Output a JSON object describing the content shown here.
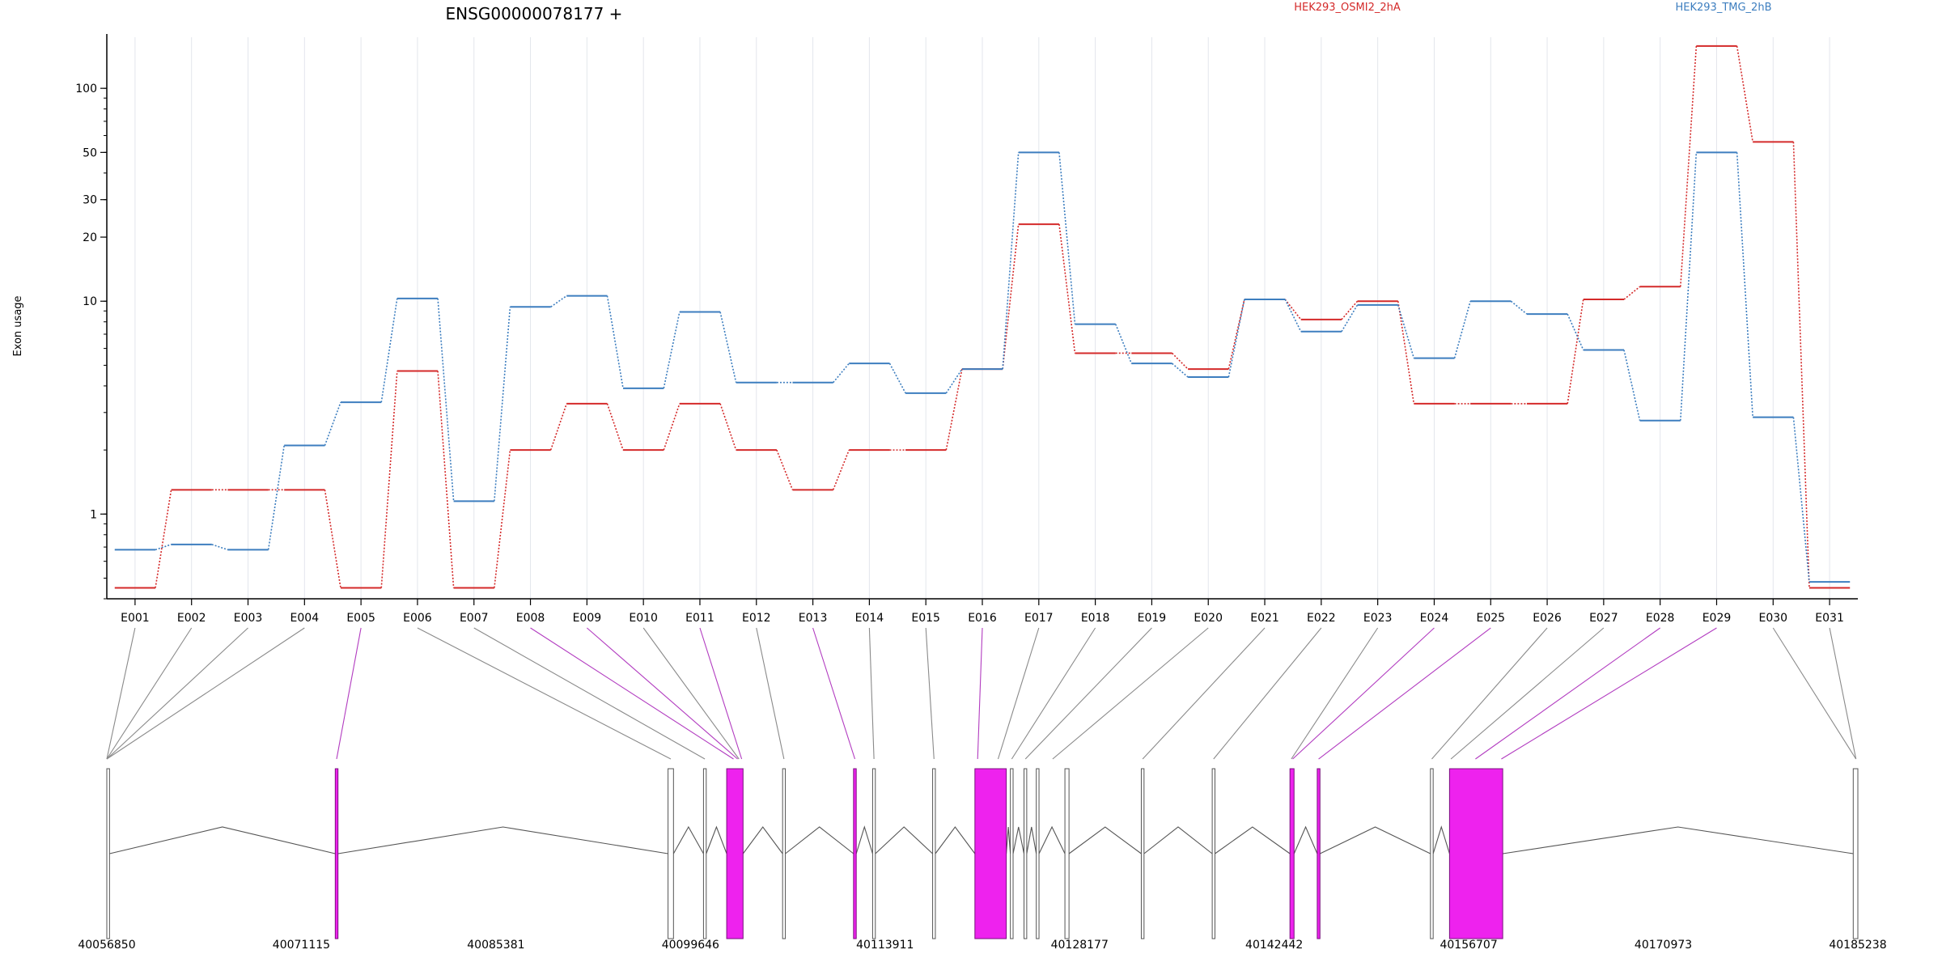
{
  "chart_data": {
    "type": "line",
    "title": "ENSG00000078177 +",
    "ylabel": "Exon usage",
    "y_scale": "log",
    "ylim": [
      0.4,
      180
    ],
    "y_ticks": [
      1,
      10,
      20,
      30,
      50,
      100
    ],
    "y_tick_labels": [
      "1",
      "10",
      "20",
      "30",
      "50",
      "100"
    ],
    "grid": "vertical",
    "legend_placement": "top",
    "categories": [
      "E001",
      "E002",
      "E003",
      "E004",
      "E005",
      "E006",
      "E007",
      "E008",
      "E009",
      "E010",
      "E011",
      "E012",
      "E013",
      "E014",
      "E015",
      "E016",
      "E017",
      "E018",
      "E019",
      "E020",
      "E021",
      "E022",
      "E023",
      "E024",
      "E025",
      "E026",
      "E027",
      "E028",
      "E029",
      "E030",
      "E031"
    ],
    "series": [
      {
        "name": "HEK293_OSMI2_2hA",
        "color": "#d42a2a",
        "values": [
          0.45,
          1.3,
          1.3,
          1.3,
          0.45,
          4.7,
          0.45,
          2.0,
          3.3,
          2.0,
          3.3,
          2.0,
          1.3,
          2.0,
          2.0,
          4.8,
          23.0,
          5.7,
          5.7,
          4.8,
          10.2,
          8.2,
          10.0,
          3.3,
          3.3,
          3.3,
          10.2,
          11.7,
          158.0,
          56.0,
          0.45
        ]
      },
      {
        "name": "HEK293_TMG_2hB",
        "color": "#3d7ebf",
        "values": [
          0.68,
          0.72,
          0.68,
          2.1,
          3.35,
          10.3,
          1.15,
          9.4,
          10.6,
          3.9,
          8.9,
          4.15,
          4.15,
          5.1,
          3.7,
          4.8,
          50.0,
          7.8,
          5.1,
          4.4,
          10.2,
          7.2,
          9.6,
          5.4,
          10.0,
          8.7,
          5.9,
          2.75,
          50.0,
          2.85,
          0.48
        ]
      }
    ],
    "genome": {
      "axis_labels": [
        "40056850",
        "40071115",
        "40085381",
        "40099646",
        "40113911",
        "40128177",
        "40142442",
        "40156707",
        "40170973",
        "40185238"
      ],
      "axis_positions": [
        40056850,
        40071115,
        40085381,
        40099646,
        40113911,
        40128177,
        40142442,
        40156707,
        40170973,
        40185238
      ],
      "range": [
        40056850,
        40185238
      ],
      "highlight_color": "#ee22ee",
      "exons": [
        {
          "start": 40056850,
          "end": 40057050,
          "highlight": false
        },
        {
          "start": 40073600,
          "end": 40073800,
          "highlight": true
        },
        {
          "start": 40098000,
          "end": 40098400,
          "highlight": false
        },
        {
          "start": 40100600,
          "end": 40100800,
          "highlight": false
        },
        {
          "start": 40102300,
          "end": 40103500,
          "highlight": true
        },
        {
          "start": 40106400,
          "end": 40106600,
          "highlight": false
        },
        {
          "start": 40111600,
          "end": 40111800,
          "highlight": true
        },
        {
          "start": 40113000,
          "end": 40113200,
          "highlight": false
        },
        {
          "start": 40117400,
          "end": 40117600,
          "highlight": false
        },
        {
          "start": 40120500,
          "end": 40122800,
          "highlight": true
        },
        {
          "start": 40123100,
          "end": 40123300,
          "highlight": false
        },
        {
          "start": 40124100,
          "end": 40124300,
          "highlight": false
        },
        {
          "start": 40125000,
          "end": 40125200,
          "highlight": false
        },
        {
          "start": 40127100,
          "end": 40127400,
          "highlight": false
        },
        {
          "start": 40132700,
          "end": 40132900,
          "highlight": false
        },
        {
          "start": 40137900,
          "end": 40138100,
          "highlight": false
        },
        {
          "start": 40143600,
          "end": 40143900,
          "highlight": true
        },
        {
          "start": 40145600,
          "end": 40145800,
          "highlight": true
        },
        {
          "start": 40153900,
          "end": 40154100,
          "highlight": false
        },
        {
          "start": 40155300,
          "end": 40159200,
          "highlight": true
        },
        {
          "start": 40184900,
          "end": 40185238,
          "highlight": false
        }
      ],
      "bin_map": [
        {
          "pos": 40056850,
          "highlight": false
        },
        {
          "pos": 40056850,
          "highlight": false
        },
        {
          "pos": 40056850,
          "highlight": false
        },
        {
          "pos": 40056850,
          "highlight": false
        },
        {
          "pos": 40073700,
          "highlight": true
        },
        {
          "pos": 40098200,
          "highlight": false
        },
        {
          "pos": 40100700,
          "highlight": false
        },
        {
          "pos": 40102800,
          "highlight": true
        },
        {
          "pos": 40103100,
          "highlight": true
        },
        {
          "pos": 40103200,
          "highlight": false
        },
        {
          "pos": 40103400,
          "highlight": true
        },
        {
          "pos": 40106500,
          "highlight": false
        },
        {
          "pos": 40111700,
          "highlight": true
        },
        {
          "pos": 40113100,
          "highlight": false
        },
        {
          "pos": 40117500,
          "highlight": false
        },
        {
          "pos": 40120700,
          "highlight": true
        },
        {
          "pos": 40122200,
          "highlight": false
        },
        {
          "pos": 40123200,
          "highlight": false
        },
        {
          "pos": 40124200,
          "highlight": false
        },
        {
          "pos": 40126200,
          "highlight": false
        },
        {
          "pos": 40132800,
          "highlight": false
        },
        {
          "pos": 40138000,
          "highlight": false
        },
        {
          "pos": 40143700,
          "highlight": false
        },
        {
          "pos": 40143800,
          "highlight": true
        },
        {
          "pos": 40145700,
          "highlight": true
        },
        {
          "pos": 40154000,
          "highlight": false
        },
        {
          "pos": 40155400,
          "highlight": false
        },
        {
          "pos": 40157200,
          "highlight": true
        },
        {
          "pos": 40159100,
          "highlight": true
        },
        {
          "pos": 40185100,
          "highlight": false
        },
        {
          "pos": 40185100,
          "highlight": false
        }
      ]
    }
  }
}
